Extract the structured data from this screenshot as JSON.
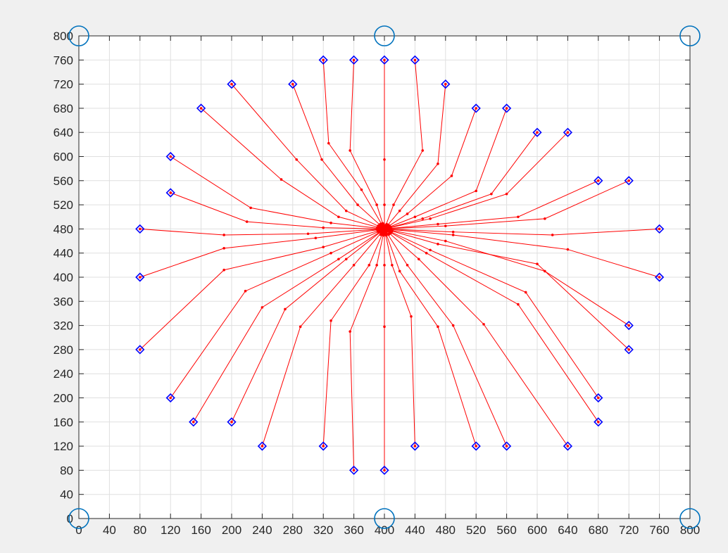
{
  "chart_data": {
    "type": "scatter",
    "title": "",
    "xlabel": "",
    "ylabel": "",
    "xlim": [
      0,
      800
    ],
    "ylim": [
      0,
      800
    ],
    "grid": true,
    "x_ticks": [
      "0",
      "40",
      "80",
      "120",
      "160",
      "200",
      "240",
      "280",
      "320",
      "360",
      "400",
      "440",
      "480",
      "520",
      "560",
      "600",
      "640",
      "680",
      "720",
      "760",
      "800"
    ],
    "y_ticks": [
      "0",
      "40",
      "80",
      "120",
      "160",
      "200",
      "240",
      "280",
      "320",
      "360",
      "400",
      "440",
      "480",
      "520",
      "560",
      "600",
      "640",
      "680",
      "720",
      "760",
      "800"
    ],
    "colors": {
      "axes_bg": "#ffffff",
      "figure_bg": "#f0f0f0",
      "grid": "#dfdfdf",
      "axis": "#262626",
      "path": "#ff0000",
      "start_marker": "#0000ff",
      "anchor": "#0072bd"
    },
    "target": {
      "x": 400,
      "y": 480
    },
    "anchor_points": [
      {
        "x": 0,
        "y": 800
      },
      {
        "x": 400,
        "y": 800
      },
      {
        "x": 800,
        "y": 800
      },
      {
        "x": 0,
        "y": 0
      },
      {
        "x": 400,
        "y": 0
      },
      {
        "x": 800,
        "y": 0
      }
    ],
    "series": [
      {
        "start": [
          320,
          760
        ],
        "path": [
          [
            320,
            760
          ],
          [
            327,
            622
          ],
          [
            370,
            545
          ],
          [
            400,
            480
          ]
        ]
      },
      {
        "start": [
          360,
          760
        ],
        "path": [
          [
            360,
            760
          ],
          [
            355,
            610
          ],
          [
            390,
            520
          ],
          [
            400,
            480
          ]
        ]
      },
      {
        "start": [
          400,
          760
        ],
        "path": [
          [
            400,
            760
          ],
          [
            400,
            595
          ],
          [
            400,
            520
          ],
          [
            400,
            480
          ]
        ]
      },
      {
        "start": [
          440,
          760
        ],
        "path": [
          [
            440,
            760
          ],
          [
            450,
            610
          ],
          [
            412,
            520
          ],
          [
            400,
            480
          ]
        ]
      },
      {
        "start": [
          480,
          720
        ],
        "path": [
          [
            480,
            720
          ],
          [
            470,
            588
          ],
          [
            420,
            510
          ],
          [
            400,
            480
          ]
        ]
      },
      {
        "start": [
          520,
          680
        ],
        "path": [
          [
            520,
            680
          ],
          [
            488,
            568
          ],
          [
            430,
            505
          ],
          [
            400,
            480
          ]
        ]
      },
      {
        "start": [
          560,
          680
        ],
        "path": [
          [
            560,
            680
          ],
          [
            520,
            543
          ],
          [
            440,
            500
          ],
          [
            400,
            480
          ]
        ]
      },
      {
        "start": [
          600,
          640
        ],
        "path": [
          [
            600,
            640
          ],
          [
            540,
            538
          ],
          [
            450,
            497
          ],
          [
            400,
            480
          ]
        ]
      },
      {
        "start": [
          640,
          640
        ],
        "path": [
          [
            640,
            640
          ],
          [
            560,
            538
          ],
          [
            460,
            497
          ],
          [
            400,
            480
          ]
        ]
      },
      {
        "start": [
          680,
          560
        ],
        "path": [
          [
            680,
            560
          ],
          [
            575,
            500
          ],
          [
            470,
            488
          ],
          [
            400,
            480
          ]
        ]
      },
      {
        "start": [
          720,
          560
        ],
        "path": [
          [
            720,
            560
          ],
          [
            610,
            497
          ],
          [
            480,
            485
          ],
          [
            400,
            480
          ]
        ]
      },
      {
        "start": [
          760,
          480
        ],
        "path": [
          [
            760,
            480
          ],
          [
            620,
            470
          ],
          [
            490,
            475
          ],
          [
            400,
            480
          ]
        ]
      },
      {
        "start": [
          760,
          400
        ],
        "path": [
          [
            760,
            400
          ],
          [
            640,
            446
          ],
          [
            490,
            470
          ],
          [
            400,
            480
          ]
        ]
      },
      {
        "start": [
          720,
          320
        ],
        "path": [
          [
            720,
            320
          ],
          [
            610,
            410
          ],
          [
            480,
            460
          ],
          [
            400,
            480
          ]
        ]
      },
      {
        "start": [
          720,
          280
        ],
        "path": [
          [
            720,
            280
          ],
          [
            600,
            422
          ],
          [
            470,
            455
          ],
          [
            400,
            480
          ]
        ]
      },
      {
        "start": [
          680,
          200
        ],
        "path": [
          [
            680,
            200
          ],
          [
            585,
            375
          ],
          [
            460,
            445
          ],
          [
            400,
            480
          ]
        ]
      },
      {
        "start": [
          680,
          160
        ],
        "path": [
          [
            680,
            160
          ],
          [
            575,
            355
          ],
          [
            455,
            440
          ],
          [
            400,
            480
          ]
        ]
      },
      {
        "start": [
          640,
          120
        ],
        "path": [
          [
            640,
            120
          ],
          [
            530,
            322
          ],
          [
            445,
            430
          ],
          [
            400,
            480
          ]
        ]
      },
      {
        "start": [
          560,
          120
        ],
        "path": [
          [
            560,
            120
          ],
          [
            490,
            320
          ],
          [
            430,
            420
          ],
          [
            400,
            480
          ]
        ]
      },
      {
        "start": [
          520,
          120
        ],
        "path": [
          [
            520,
            120
          ],
          [
            470,
            318
          ],
          [
            420,
            410
          ],
          [
            400,
            480
          ]
        ]
      },
      {
        "start": [
          440,
          120
        ],
        "path": [
          [
            440,
            120
          ],
          [
            435,
            335
          ],
          [
            410,
            420
          ],
          [
            400,
            480
          ]
        ]
      },
      {
        "start": [
          400,
          80
        ],
        "path": [
          [
            400,
            80
          ],
          [
            400,
            318
          ],
          [
            400,
            420
          ],
          [
            400,
            480
          ]
        ]
      },
      {
        "start": [
          360,
          80
        ],
        "path": [
          [
            360,
            80
          ],
          [
            355,
            310
          ],
          [
            390,
            420
          ],
          [
            400,
            480
          ]
        ]
      },
      {
        "start": [
          320,
          120
        ],
        "path": [
          [
            320,
            120
          ],
          [
            330,
            328
          ],
          [
            380,
            420
          ],
          [
            400,
            480
          ]
        ]
      },
      {
        "start": [
          240,
          120
        ],
        "path": [
          [
            240,
            120
          ],
          [
            290,
            318
          ],
          [
            360,
            420
          ],
          [
            400,
            480
          ]
        ]
      },
      {
        "start": [
          200,
          160
        ],
        "path": [
          [
            200,
            160
          ],
          [
            270,
            347
          ],
          [
            350,
            430
          ],
          [
            400,
            480
          ]
        ]
      },
      {
        "start": [
          150,
          160
        ],
        "path": [
          [
            150,
            160
          ],
          [
            240,
            350
          ],
          [
            340,
            430
          ],
          [
            400,
            480
          ]
        ]
      },
      {
        "start": [
          120,
          200
        ],
        "path": [
          [
            120,
            200
          ],
          [
            218,
            377
          ],
          [
            330,
            440
          ],
          [
            400,
            480
          ]
        ]
      },
      {
        "start": [
          80,
          280
        ],
        "path": [
          [
            80,
            280
          ],
          [
            190,
            412
          ],
          [
            320,
            450
          ],
          [
            400,
            480
          ]
        ]
      },
      {
        "start": [
          80,
          400
        ],
        "path": [
          [
            80,
            400
          ],
          [
            190,
            448
          ],
          [
            310,
            465
          ],
          [
            400,
            480
          ]
        ]
      },
      {
        "start": [
          80,
          480
        ],
        "path": [
          [
            80,
            480
          ],
          [
            190,
            470
          ],
          [
            300,
            472
          ],
          [
            400,
            480
          ]
        ]
      },
      {
        "start": [
          120,
          540
        ],
        "path": [
          [
            120,
            540
          ],
          [
            220,
            492
          ],
          [
            320,
            482
          ],
          [
            400,
            480
          ]
        ]
      },
      {
        "start": [
          120,
          600
        ],
        "path": [
          [
            120,
            600
          ],
          [
            225,
            515
          ],
          [
            330,
            490
          ],
          [
            400,
            480
          ]
        ]
      },
      {
        "start": [
          160,
          680
        ],
        "path": [
          [
            160,
            680
          ],
          [
            265,
            562
          ],
          [
            340,
            500
          ],
          [
            400,
            480
          ]
        ]
      },
      {
        "start": [
          200,
          720
        ],
        "path": [
          [
            200,
            720
          ],
          [
            285,
            595
          ],
          [
            350,
            510
          ],
          [
            400,
            480
          ]
        ]
      },
      {
        "start": [
          280,
          720
        ],
        "path": [
          [
            280,
            720
          ],
          [
            318,
            595
          ],
          [
            365,
            520
          ],
          [
            400,
            480
          ]
        ]
      }
    ]
  }
}
